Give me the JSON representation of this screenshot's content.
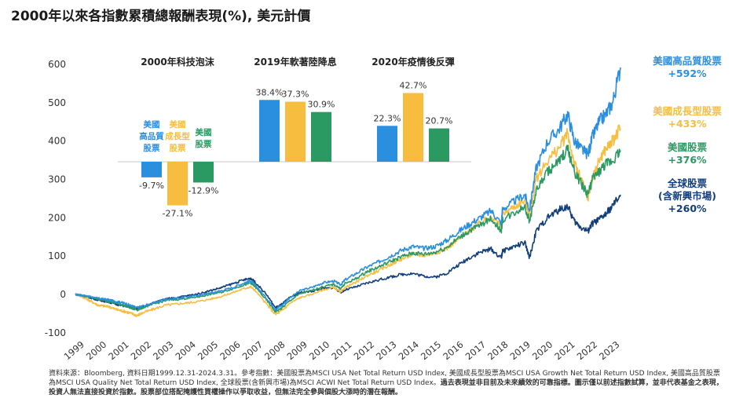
{
  "title": "2000年以來各指數累積總報酬表現(%), 美元計價",
  "colors": {
    "quality": "#2b8fe0",
    "growth": "#f7bd3f",
    "us": "#2a9a62",
    "global": "#123e7c"
  },
  "chart_data": [
    {
      "type": "line",
      "y_ticks": [
        600,
        500,
        400,
        300,
        200,
        100,
        0,
        -100
      ],
      "ylim": [
        -100,
        600
      ],
      "x_ticks": [
        "1999",
        "2000",
        "2001",
        "2002",
        "2003",
        "2004",
        "2005",
        "2006",
        "2007",
        "2008",
        "2009",
        "2010",
        "2011",
        "2012",
        "2013",
        "2014",
        "2015",
        "2016",
        "2017",
        "2018",
        "2019",
        "2020",
        "2021",
        "2022",
        "2023"
      ],
      "grid": false,
      "x": [
        2000.0,
        2000.25,
        2000.5,
        2000.75,
        2001.0,
        2001.25,
        2001.5,
        2001.75,
        2002.0,
        2002.25,
        2002.5,
        2002.75,
        2003.0,
        2003.5,
        2004.0,
        2004.5,
        2005.0,
        2005.5,
        2006.0,
        2006.5,
        2007.0,
        2007.5,
        2007.8,
        2008.0,
        2008.5,
        2008.9,
        2009.2,
        2009.5,
        2010.0,
        2010.5,
        2011.0,
        2011.5,
        2011.8,
        2012.0,
        2012.5,
        2013.0,
        2013.5,
        2014.0,
        2014.5,
        2015.0,
        2015.5,
        2016.0,
        2016.5,
        2017.0,
        2017.5,
        2018.0,
        2018.5,
        2018.95,
        2019.0,
        2019.5,
        2020.0,
        2020.2,
        2020.5,
        2021.0,
        2021.5,
        2021.9,
        2022.2,
        2022.5,
        2022.8,
        2023.0,
        2023.3,
        2023.6,
        2023.9,
        2024.25
      ],
      "series": [
        {
          "name": "美國高品質股票",
          "end_label": "+592%",
          "values": [
            0,
            -2,
            -4,
            -7,
            -10,
            -12,
            -14,
            -18,
            -20,
            -24,
            -30,
            -35,
            -30,
            -22,
            -12,
            -10,
            -6,
            -2,
            4,
            10,
            18,
            30,
            36,
            25,
            -10,
            -38,
            -28,
            -10,
            10,
            18,
            30,
            35,
            25,
            38,
            55,
            72,
            85,
            100,
            115,
            125,
            120,
            125,
            140,
            162,
            182,
            200,
            218,
            185,
            222,
            242,
            260,
            220,
            330,
            398,
            430,
            470,
            400,
            380,
            365,
            410,
            450,
            470,
            500,
            592
          ]
        },
        {
          "name": "美國成長型股票",
          "end_label": "+433%",
          "values": [
            0,
            -5,
            -12,
            -20,
            -28,
            -30,
            -32,
            -38,
            -42,
            -45,
            -50,
            -55,
            -48,
            -38,
            -28,
            -25,
            -22,
            -18,
            -12,
            -5,
            5,
            15,
            20,
            10,
            -25,
            -52,
            -42,
            -25,
            -8,
            0,
            12,
            18,
            5,
            18,
            32,
            50,
            62,
            78,
            92,
            105,
            102,
            108,
            120,
            142,
            165,
            185,
            205,
            175,
            210,
            228,
            245,
            205,
            300,
            350,
            380,
            420,
            340,
            300,
            250,
            300,
            350,
            380,
            400,
            433
          ]
        },
        {
          "name": "美國股票",
          "end_label": "+376%",
          "values": [
            0,
            -2,
            -5,
            -9,
            -12,
            -15,
            -18,
            -22,
            -26,
            -30,
            -36,
            -40,
            -34,
            -25,
            -16,
            -13,
            -10,
            -6,
            0,
            6,
            15,
            25,
            30,
            20,
            -15,
            -45,
            -35,
            -18,
            2,
            10,
            20,
            26,
            15,
            28,
            42,
            60,
            72,
            86,
            98,
            108,
            105,
            110,
            122,
            145,
            165,
            180,
            198,
            165,
            195,
            212,
            230,
            190,
            270,
            320,
            345,
            380,
            320,
            290,
            260,
            300,
            320,
            340,
            350,
            376
          ]
        },
        {
          "name": "全球股票(含新興市場)",
          "end_label": "+260%",
          "values": [
            0,
            -3,
            -6,
            -10,
            -14,
            -17,
            -20,
            -24,
            -28,
            -30,
            -35,
            -38,
            -32,
            -22,
            -12,
            -8,
            -3,
            2,
            10,
            18,
            28,
            38,
            42,
            32,
            0,
            -35,
            -25,
            -10,
            5,
            8,
            15,
            18,
            5,
            12,
            20,
            30,
            38,
            45,
            52,
            55,
            48,
            45,
            55,
            75,
            95,
            110,
            118,
            95,
            112,
            125,
            135,
            95,
            165,
            200,
            220,
            230,
            190,
            175,
            165,
            185,
            195,
            210,
            230,
            260
          ]
        }
      ]
    },
    {
      "type": "bar",
      "groups": [
        {
          "title": "2000年科技泡沫",
          "values": [
            -9.7,
            -27.1,
            -12.9
          ],
          "labels": [
            "-9.7%",
            "-27.1%",
            "-12.9%"
          ]
        },
        {
          "title": "2019年軟著陸降息",
          "values": [
            38.4,
            37.3,
            30.9
          ],
          "labels": [
            "38.4%",
            "37.3%",
            "30.9%"
          ]
        },
        {
          "title": "2020年疫情後反彈",
          "values": [
            22.3,
            42.7,
            20.7
          ],
          "labels": [
            "22.3%",
            "42.7%",
            "20.7%"
          ]
        }
      ],
      "series_labels": [
        [
          "美國",
          "高品質",
          "股票"
        ],
        [
          "美國",
          "成長型",
          "股票"
        ],
        [
          "美國",
          "股票"
        ]
      ]
    }
  ],
  "legend": [
    {
      "name": "美國高品質股票",
      "pct": "+592%"
    },
    {
      "name": "美國成長型股票",
      "pct": "+433%"
    },
    {
      "name": "美國股票",
      "pct": "+376%"
    },
    {
      "name_line1": "全球股票",
      "name_line2": "(含新興市場)",
      "pct": "+260%"
    }
  ],
  "footer": {
    "normal": "資料來源：Bloomberg, 資料日期1999.12.31-2024.3.31。參考指數：美國股票為MSCI USA Net Total Return USD Index, 美國成長型股票為MSCI USA Growth Net Total Return USD Index, 美國高品質股票為MSCI USA Quality Net Total Return USD Index, 全球股票(含新興市場)為MSCI ACWI Net Total Return USD Index。",
    "bold": "過去表現並非目前及未來績效的可靠指標。圖示僅以前述指數試算，並非代表基金之表現，投資人無法直接投資於指數。股票部位搭配掩護性買權操作以爭取收益，但無法完全參與個股大漲時的潛在報酬。"
  }
}
